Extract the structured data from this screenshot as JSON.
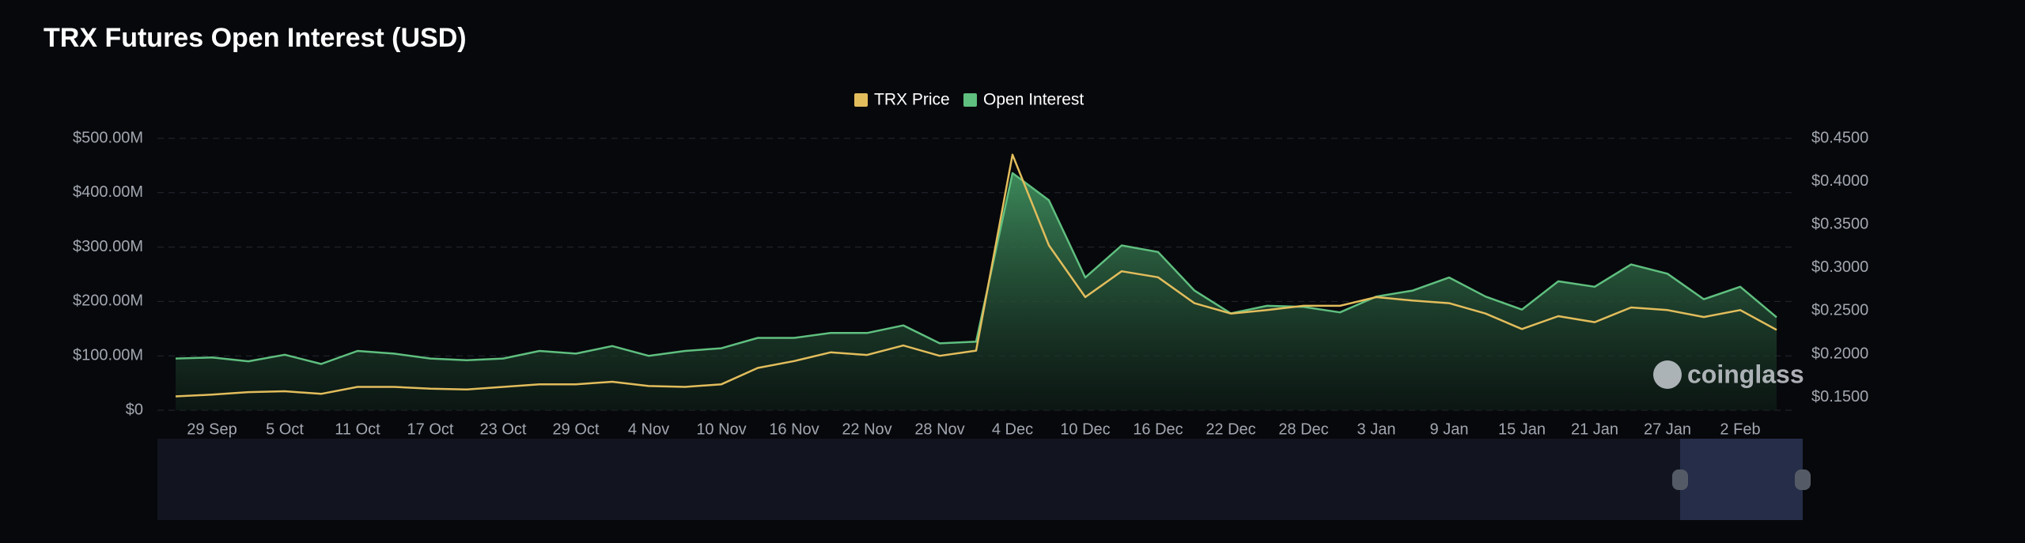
{
  "chart_data": {
    "type": "line-area",
    "title": "TRX Futures Open Interest (USD)",
    "watermark": "coinglass",
    "categories": [
      null,
      "29 Sep",
      null,
      "5 Oct",
      null,
      "11 Oct",
      null,
      "17 Oct",
      null,
      "23 Oct",
      null,
      "29 Oct",
      null,
      "4 Nov",
      null,
      "10 Nov",
      null,
      "16 Nov",
      null,
      "22 Nov",
      null,
      "28 Nov",
      null,
      "4 Dec",
      null,
      "10 Dec",
      null,
      "16 Dec",
      null,
      "22 Dec",
      null,
      "28 Dec",
      null,
      "3 Jan",
      null,
      "9 Jan",
      null,
      "15 Jan",
      null,
      "21 Jan",
      null,
      "27 Jan",
      null,
      "2 Feb",
      null
    ],
    "series": [
      {
        "name": "TRX Price",
        "color": "#e2bd5c",
        "axis": "y2",
        "values": [
          0.151,
          0.153,
          0.156,
          0.157,
          0.154,
          0.162,
          0.162,
          0.16,
          0.159,
          0.162,
          0.165,
          0.165,
          0.168,
          0.163,
          0.162,
          0.165,
          0.184,
          0.192,
          0.202,
          0.199,
          0.21,
          0.198,
          0.204,
          0.431,
          0.326,
          0.266,
          0.296,
          0.289,
          0.259,
          0.247,
          0.251,
          0.256,
          0.256,
          0.266,
          0.262,
          0.259,
          0.247,
          0.229,
          0.244,
          0.237,
          0.254,
          0.251,
          0.243,
          0.251,
          0.228
        ]
      },
      {
        "name": "Open Interest",
        "color": "#5fbf7f",
        "values": [
          95000000,
          97000000,
          90000000,
          102000000,
          85000000,
          109000000,
          104000000,
          95000000,
          92000000,
          95000000,
          109000000,
          104000000,
          118000000,
          100000000,
          109000000,
          114000000,
          133000000,
          133000000,
          142000000,
          142000000,
          156000000,
          123000000,
          126000000,
          436000000,
          386000000,
          244000000,
          303000000,
          291000000,
          220000000,
          178000000,
          192000000,
          190000000,
          180000000,
          209000000,
          220000000,
          244000000,
          209000000,
          185000000,
          237000000,
          227000000,
          268000000,
          251000000,
          204000000,
          227000000,
          171000000
        ]
      }
    ],
    "ylim": [
      0,
      500000000
    ],
    "yticks": [
      {
        "value": 0,
        "label": "$0"
      },
      {
        "value": 100000000,
        "label": "$100.00M"
      },
      {
        "value": 200000000,
        "label": "$200.00M"
      },
      {
        "value": 300000000,
        "label": "$300.00M"
      },
      {
        "value": 400000000,
        "label": "$400.00M"
      },
      {
        "value": 500000000,
        "label": "$500.00M"
      }
    ],
    "y2lim": [
      0.135,
      0.45
    ],
    "y2ticks": [
      {
        "value": 0.15,
        "label": "$0.1500"
      },
      {
        "value": 0.2,
        "label": "$0.2000"
      },
      {
        "value": 0.25,
        "label": "$0.2500"
      },
      {
        "value": 0.3,
        "label": "$0.3000"
      },
      {
        "value": 0.35,
        "label": "$0.3500"
      },
      {
        "value": 0.4,
        "label": "$0.4000"
      },
      {
        "value": 0.45,
        "label": "$0.4500"
      }
    ],
    "grid": true
  }
}
